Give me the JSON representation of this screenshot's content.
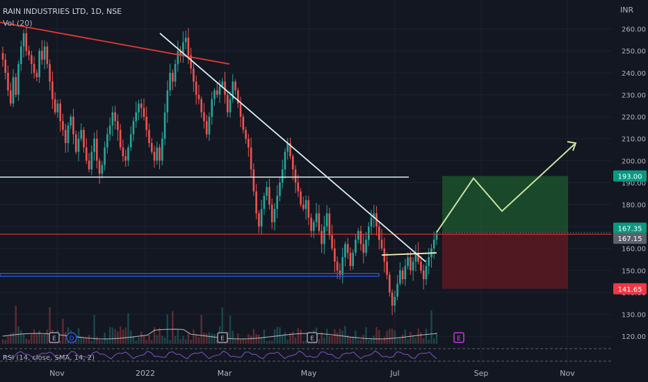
{
  "header": {
    "symbol_line": "RAIN INDUSTRIES LTD, 1D, NSE",
    "volume_label": "Vol (20)",
    "rsi_label": "RSI (14, close, SMA, 14, 2)"
  },
  "colors": {
    "background": "#131722",
    "up_candle": "#26a69a",
    "down_candle": "#ef5350",
    "trendline_white": "#d9f2f2",
    "resistance_red": "#e53935",
    "support_blue": "#2962ff",
    "target_zone": "#1e5a2e",
    "stop_zone": "#5c1a22",
    "projection": "#c8e6a0",
    "rsi_line": "#7e57c2"
  },
  "chart_data": {
    "type": "candlestick",
    "currency_label": "INR",
    "x_ticks": [
      "Nov",
      "2022",
      "Mar",
      "May",
      "Jul",
      "Sep",
      "Nov"
    ],
    "y_ticks": [
      "260.00",
      "250.00",
      "240.00",
      "230.00",
      "220.00",
      "210.00",
      "200.00",
      "190.00",
      "180.00",
      "170.00",
      "160.00",
      "150.00",
      "140.00",
      "130.00",
      "120.00"
    ],
    "ylim": [
      115,
      270
    ],
    "price_labels": [
      {
        "id": "target",
        "text": "193.00",
        "value": 193.0,
        "color": "#089981"
      },
      {
        "id": "last",
        "text": "167.35",
        "value": 167.35,
        "color": "#089981"
      },
      {
        "id": "prev",
        "text": "167.15",
        "value": 167.15,
        "color": "#5d606b"
      },
      {
        "id": "stop",
        "text": "141.65",
        "value": 141.65,
        "color": "#f23645"
      }
    ],
    "horizontal_levels": [
      {
        "name": "resistance",
        "value": 192.5,
        "color": "#d9f2f2"
      },
      {
        "name": "red-level",
        "value": 166.5,
        "color": "#e53935"
      },
      {
        "name": "support",
        "value": 148.0,
        "color": "#2962ff"
      }
    ],
    "position": {
      "entry": 167.35,
      "target": 193.0,
      "stop": 141.65
    },
    "projection_path": [
      167.35,
      192.0,
      177.0,
      208.0
    ],
    "event_markers": [
      "E",
      "D",
      "E",
      "E",
      "E"
    ],
    "closes": [
      246,
      240,
      232,
      226,
      238,
      230,
      244,
      252,
      258,
      250,
      248,
      244,
      240,
      238,
      250,
      246,
      252,
      244,
      236,
      228,
      222,
      226,
      218,
      214,
      208,
      216,
      220,
      212,
      204,
      210,
      214,
      206,
      200,
      196,
      204,
      210,
      200,
      194,
      198,
      206,
      212,
      216,
      222,
      218,
      214,
      206,
      202,
      200,
      206,
      212,
      218,
      222,
      226,
      224,
      220,
      214,
      208,
      204,
      200,
      206,
      200,
      210,
      222,
      232,
      240,
      236,
      244,
      250,
      248,
      254,
      256,
      248,
      242,
      236,
      230,
      228,
      222,
      218,
      212,
      220,
      228,
      232,
      230,
      234,
      236,
      230,
      222,
      228,
      236,
      232,
      226,
      220,
      214,
      210,
      206,
      196,
      186,
      176,
      170,
      178,
      184,
      188,
      180,
      172,
      178,
      184,
      190,
      196,
      204,
      208,
      202,
      196,
      190,
      186,
      180,
      178,
      182,
      174,
      168,
      172,
      176,
      168,
      162,
      170,
      176,
      166,
      160,
      154,
      150,
      148,
      156,
      162,
      158,
      152,
      158,
      164,
      168,
      162,
      158,
      164,
      170,
      174,
      176,
      170,
      164,
      160,
      154,
      148,
      140,
      134,
      138,
      144,
      150,
      146,
      152,
      156,
      150,
      154,
      158,
      154,
      150,
      146,
      152,
      156,
      160,
      164,
      167
    ]
  }
}
